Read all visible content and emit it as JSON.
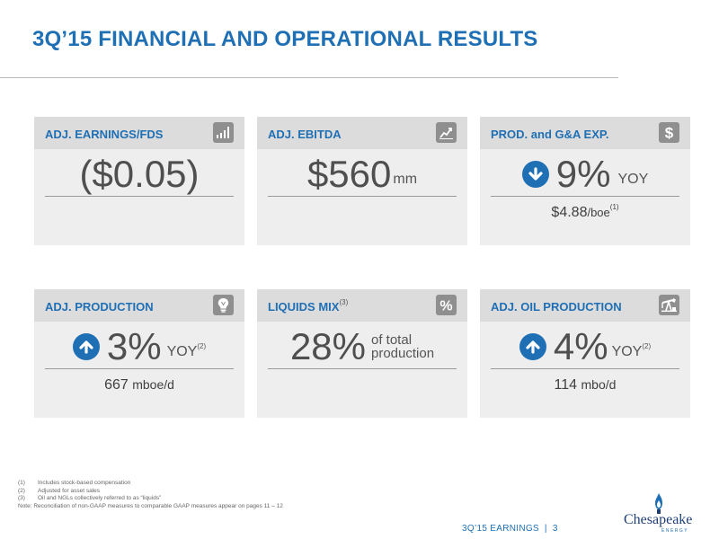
{
  "title": "3Q’15 FINANCIAL AND OPERATIONAL RESULTS",
  "cards": {
    "earnings": {
      "label": "ADJ. EARNINGS/FDS",
      "icon": "bar-chart-icon",
      "value": "($0.05)"
    },
    "ebitda": {
      "label": "ADJ. EBITDA",
      "icon": "trend-up-icon",
      "value": "$560",
      "unit": "mm"
    },
    "prod_ga": {
      "label": "PROD. and G&A EXP.",
      "icon": "dollar-icon",
      "arrow": "down-arrow-icon",
      "value": "9%",
      "unit": "YOY",
      "sub_value": "$4.88",
      "sub_unit": "/boe",
      "sub_note": "(1)"
    },
    "production": {
      "label": "ADJ. PRODUCTION",
      "icon": "lightbulb-icon",
      "arrow": "up-arrow-icon",
      "value": "3%",
      "unit": "YOY",
      "unit_note": "(2)",
      "sub_value": "667",
      "sub_unit": "mboe/d"
    },
    "liquids": {
      "label": "LIQUIDS MIX",
      "label_note": "(3)",
      "icon": "percent-icon",
      "value": "28%",
      "desc_line1": "of total",
      "desc_line2": "production"
    },
    "oil": {
      "label": "ADJ. OIL PRODUCTION",
      "icon": "oil-pump-icon",
      "arrow": "up-arrow-icon",
      "value": "4%",
      "unit": "YOY",
      "unit_note": "(2)",
      "sub_value": "114",
      "sub_unit": "mbo/d"
    }
  },
  "footnotes": [
    {
      "num": "(1)",
      "text": "Includes stock-based compensation"
    },
    {
      "num": "(2)",
      "text": "Adjusted for asset sales"
    },
    {
      "num": "(3)",
      "text": "Oil and NGLs collectively referred to as “liquids”"
    }
  ],
  "note": "Note: Reconciliation of non-GAAP measures to comparable GAAP measures appear on pages 11 – 12",
  "footer": {
    "label": "3Q’15 EARNINGS",
    "separator": "|",
    "page": "3"
  },
  "logo": {
    "name": "Chesapeake",
    "sub": "ENERGY"
  },
  "colors": {
    "accent": "#1f6fb5",
    "card_bg": "#eeeeee",
    "card_head": "#dcdcdc",
    "icon_bg": "#8f8f8f"
  }
}
